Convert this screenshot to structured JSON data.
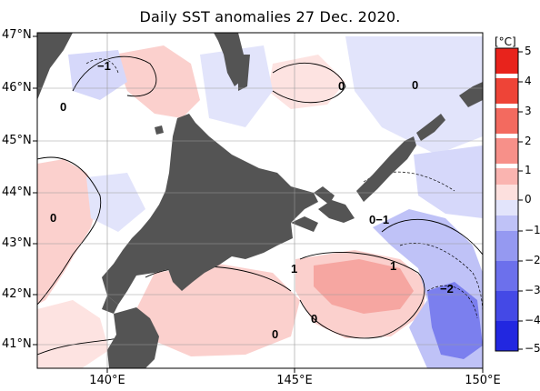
{
  "title": "Daily SST anomalies 27 Dec. 2020.",
  "colorbar": {
    "unit": "[°C]",
    "ticks": [
      "5",
      "4",
      "3",
      "2",
      "1",
      "0",
      "−1",
      "−2",
      "−3",
      "−4",
      "−5"
    ],
    "range": [
      -5,
      5
    ],
    "colors": {
      "pos5": "#e8231c",
      "pos4": "#ee4437",
      "pos3": "#f36a5f",
      "pos2": "#f79089",
      "pos1": "#fab4b0",
      "pos0": "#fde0de",
      "neg0": "#e2e4fb",
      "neg1": "#bfc2f7",
      "neg2": "#9599f1",
      "neg3": "#6c70ec",
      "neg4": "#4449e6",
      "neg5": "#2227e0"
    }
  },
  "map": {
    "land_color": "#545454",
    "latitudes": [
      "47°N",
      "46°N",
      "45°N",
      "44°N",
      "43°N",
      "42°N",
      "41°N"
    ],
    "longitudes": [
      "140°E",
      "145°E",
      "150°E"
    ],
    "contour_labels": [
      "−1",
      "0",
      "0",
      "0",
      "0",
      "0−1",
      "1",
      "1",
      "−2",
      "0",
      "0"
    ]
  }
}
